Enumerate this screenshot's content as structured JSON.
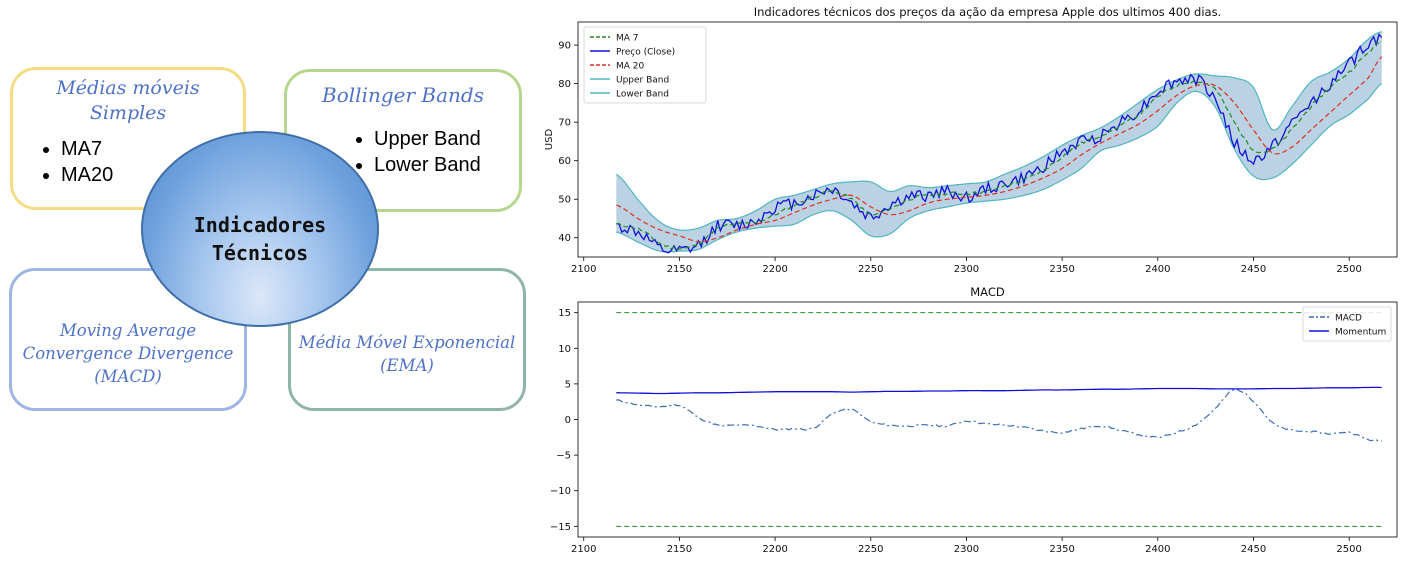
{
  "diagram": {
    "center": {
      "line1": "Indicadores",
      "line2": "Técnicos"
    },
    "sma": {
      "title_line1": "Médias móveis",
      "title_line2": "Simples",
      "items": [
        "MA7",
        "MA20"
      ]
    },
    "bollinger": {
      "title": "Bollinger Bands",
      "items": [
        "Upper Band",
        "Lower Band"
      ]
    },
    "macd": {
      "title_line1": "Moving Average",
      "title_line2": "Convergence Divergence",
      "title_line3": "(MACD)"
    },
    "ema": {
      "title_line1": "Média Móvel Exponencial",
      "title_line2": "(EMA)"
    },
    "colors": {
      "sma_border": "#f2dc84",
      "bollinger_border": "#b7d68e",
      "macd_border": "#9fb6e4",
      "ema_border": "#8fb5a7",
      "text": "#4f72c9"
    }
  },
  "chart_data": [
    {
      "type": "line",
      "title": "Indicadores técnicos dos preços da ação da empresa Apple dos ultimos 400 dias.",
      "xlabel": "",
      "ylabel": "USD",
      "xlim": [
        2097,
        2525
      ],
      "ylim": [
        35,
        96
      ],
      "xticks": [
        2100,
        2150,
        2200,
        2250,
        2300,
        2350,
        2400,
        2450,
        2500
      ],
      "yticks": [
        40,
        50,
        60,
        70,
        80,
        90
      ],
      "legend": "top-left",
      "grid": false,
      "x_anchors": [
        2117,
        2130,
        2140,
        2150,
        2160,
        2170,
        2180,
        2190,
        2200,
        2210,
        2220,
        2230,
        2240,
        2250,
        2260,
        2270,
        2280,
        2290,
        2300,
        2310,
        2320,
        2330,
        2340,
        2350,
        2360,
        2370,
        2380,
        2390,
        2400,
        2410,
        2420,
        2430,
        2440,
        2450,
        2460,
        2470,
        2480,
        2490,
        2500,
        2510,
        2517
      ],
      "series": [
        {
          "name": "MA 7",
          "color": "#228b22",
          "style": "dashed",
          "values": [
            43.5,
            42,
            38.5,
            37.2,
            38.5,
            42.5,
            43.5,
            44,
            46,
            48.5,
            50.5,
            52,
            50,
            46,
            47.5,
            50,
            51,
            51.5,
            51.5,
            52,
            53.5,
            55,
            57.5,
            61,
            64.5,
            66.5,
            69,
            72,
            76.5,
            79.5,
            80.5,
            78.5,
            70,
            63,
            63,
            68,
            74,
            79,
            83,
            88,
            91
          ]
        },
        {
          "name": "Preço (Close)",
          "color": "#1010dd",
          "style": "solid",
          "values": [
            43,
            41,
            37,
            36.5,
            38,
            43,
            43.2,
            44.5,
            48,
            49,
            51,
            52.5,
            49,
            45.5,
            48.5,
            50.5,
            51,
            52,
            50.5,
            52.5,
            54,
            55.5,
            58.5,
            62,
            65,
            66.5,
            70,
            73,
            78,
            80.5,
            81,
            76,
            65,
            60,
            64,
            69.5,
            75,
            80,
            85,
            90,
            92
          ]
        },
        {
          "name": "MA 20",
          "color": "#e03020",
          "style": "dashed",
          "values": [
            48.5,
            44.5,
            42,
            40.5,
            39,
            40,
            42,
            43.5,
            44.5,
            46.5,
            48.5,
            50,
            51,
            48,
            46,
            47,
            49,
            50,
            50.5,
            51,
            52,
            53.5,
            55.5,
            58,
            61.5,
            64.5,
            67,
            69.5,
            73,
            77,
            79.5,
            79.5,
            75,
            68,
            62,
            63.5,
            68,
            72.5,
            77,
            81.5,
            87
          ]
        },
        {
          "name": "Upper Band",
          "color": "#4fb6c0",
          "style": "solid",
          "values": [
            56.5,
            49,
            44,
            42,
            42.5,
            44.5,
            45,
            47,
            50,
            51,
            52.5,
            54,
            54.5,
            54.5,
            52,
            53.5,
            53,
            53.5,
            54,
            54.5,
            56.5,
            58.5,
            61,
            64,
            66.5,
            68.5,
            71.5,
            75,
            78.5,
            81,
            82.5,
            82,
            81.5,
            79,
            68,
            74,
            80.5,
            83,
            86.5,
            91.5,
            93.5
          ]
        },
        {
          "name": "Lower Band",
          "color": "#4fb6c0",
          "style": "solid",
          "values": [
            41.5,
            38.5,
            36.5,
            36.5,
            37,
            39.5,
            41.5,
            42.5,
            43,
            43.5,
            46,
            47,
            44.5,
            40.5,
            41,
            45,
            47,
            48,
            49,
            49.5,
            50,
            51,
            52.5,
            55,
            58,
            62.5,
            64,
            66,
            69,
            75,
            78,
            74,
            63,
            56,
            55.5,
            59,
            64,
            69,
            72,
            76,
            80
          ]
        }
      ]
    },
    {
      "type": "line",
      "title": "MACD",
      "xlabel": "",
      "ylabel": "",
      "xlim": [
        2097,
        2525
      ],
      "ylim": [
        -16.5,
        16.5
      ],
      "xticks": [
        2100,
        2150,
        2200,
        2250,
        2300,
        2350,
        2400,
        2450,
        2500
      ],
      "yticks": [
        -15,
        -10,
        -5,
        0,
        5,
        10,
        15
      ],
      "legend": "top-right",
      "grid": false,
      "reference_lines": [
        {
          "y": 15,
          "color": "#228b22"
        },
        {
          "y": -15,
          "color": "#228b22"
        }
      ],
      "x_anchors": [
        2117,
        2130,
        2140,
        2150,
        2160,
        2170,
        2180,
        2190,
        2200,
        2210,
        2220,
        2230,
        2240,
        2250,
        2260,
        2270,
        2280,
        2290,
        2300,
        2310,
        2320,
        2330,
        2340,
        2350,
        2360,
        2370,
        2380,
        2390,
        2400,
        2410,
        2420,
        2430,
        2440,
        2450,
        2460,
        2470,
        2480,
        2490,
        2500,
        2510,
        2517
      ],
      "series": [
        {
          "name": "MACD",
          "color": "#3a6fb8",
          "style": "dashdot",
          "values": [
            2.7,
            2.0,
            1.8,
            2.0,
            0.3,
            -0.8,
            -0.8,
            -0.9,
            -1.4,
            -1.3,
            -1.2,
            0.8,
            1.4,
            -0.3,
            -0.8,
            -0.9,
            -0.8,
            -0.9,
            -0.2,
            -0.6,
            -0.8,
            -1.1,
            -1.6,
            -1.8,
            -1.3,
            -0.9,
            -1.5,
            -2.1,
            -2.5,
            -1.8,
            -0.7,
            1.5,
            4.2,
            2.6,
            -0.5,
            -1.5,
            -1.7,
            -2.0,
            -1.8,
            -2.8,
            -3.0
          ]
        },
        {
          "name": "Momentum",
          "color": "#1010dd",
          "style": "solid",
          "values": [
            3.75,
            3.7,
            3.65,
            3.7,
            3.75,
            3.75,
            3.8,
            3.85,
            3.9,
            3.9,
            3.9,
            3.9,
            3.85,
            3.9,
            3.95,
            3.95,
            4.0,
            4.0,
            4.05,
            4.05,
            4.05,
            4.1,
            4.15,
            4.15,
            4.2,
            4.25,
            4.25,
            4.3,
            4.35,
            4.35,
            4.35,
            4.3,
            4.3,
            4.3,
            4.35,
            4.35,
            4.4,
            4.45,
            4.45,
            4.5,
            4.5
          ]
        }
      ]
    }
  ]
}
